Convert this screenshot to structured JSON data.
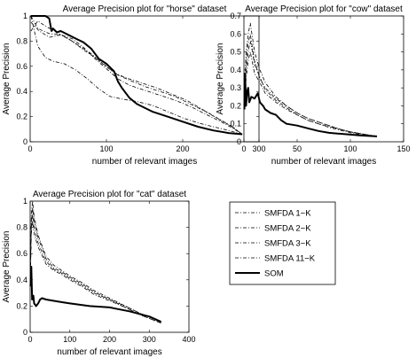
{
  "chart_data": [
    {
      "type": "line",
      "title": "Average Precision plot for \"horse\" dataset",
      "xlabel": "number of relevant images",
      "ylabel": "Average Precision",
      "xlim": [
        0,
        300
      ],
      "ylim": [
        0,
        1
      ],
      "xticks": [
        0,
        100,
        200,
        300
      ],
      "yticks": [
        0,
        0.2,
        0.4,
        0.6,
        0.8,
        1
      ],
      "xtick_labels": [
        "0",
        "100",
        "200",
        "300"
      ],
      "ytick_labels": [
        "0",
        "0.2",
        "0.4",
        "0.6",
        "0.8",
        "1"
      ],
      "grid": false,
      "series": [
        {
          "name": "SMFDA 1−K",
          "style": "dashdot",
          "width": 0.8,
          "x": [
            1,
            10,
            20,
            30,
            45,
            60,
            75,
            90,
            105,
            120,
            140,
            160,
            180,
            200,
            220,
            240,
            260,
            278
          ],
          "y": [
            1.0,
            0.76,
            0.67,
            0.64,
            0.62,
            0.57,
            0.5,
            0.42,
            0.36,
            0.34,
            0.32,
            0.29,
            0.24,
            0.19,
            0.15,
            0.12,
            0.09,
            0.06
          ]
        },
        {
          "name": "SMFDA 2−K",
          "style": "dashdot",
          "width": 0.8,
          "x": [
            1,
            10,
            25,
            40,
            55,
            70,
            85,
            100,
            115,
            130,
            150,
            170,
            190,
            210,
            230,
            250,
            265,
            278
          ],
          "y": [
            1.0,
            0.9,
            0.86,
            0.85,
            0.82,
            0.75,
            0.66,
            0.58,
            0.5,
            0.45,
            0.41,
            0.37,
            0.33,
            0.28,
            0.22,
            0.16,
            0.11,
            0.06
          ]
        },
        {
          "name": "SMFDA 3−K",
          "style": "dashdot",
          "width": 0.8,
          "x": [
            1,
            12,
            25,
            40,
            55,
            70,
            85,
            100,
            115,
            130,
            150,
            170,
            190,
            210,
            230,
            250,
            265,
            278
          ],
          "y": [
            0.95,
            0.88,
            0.83,
            0.85,
            0.8,
            0.73,
            0.67,
            0.6,
            0.53,
            0.49,
            0.44,
            0.4,
            0.36,
            0.3,
            0.24,
            0.17,
            0.12,
            0.06
          ]
        },
        {
          "name": "SMFDA 11−K",
          "style": "dashdot",
          "width": 0.8,
          "x": [
            1,
            10,
            20,
            35,
            50,
            65,
            80,
            95,
            110,
            125,
            145,
            165,
            185,
            205,
            225,
            245,
            262,
            278
          ],
          "y": [
            0.88,
            0.96,
            0.92,
            0.87,
            0.82,
            0.76,
            0.7,
            0.62,
            0.55,
            0.51,
            0.47,
            0.43,
            0.38,
            0.33,
            0.26,
            0.19,
            0.13,
            0.06
          ]
        },
        {
          "name": "SOM",
          "style": "solid",
          "width": 2,
          "x": [
            1,
            3,
            5,
            10,
            15,
            20,
            25,
            28,
            30,
            35,
            40,
            50,
            60,
            70,
            80,
            90,
            100,
            110,
            115,
            120,
            130,
            140,
            160,
            180,
            200,
            220,
            240,
            260,
            278
          ],
          "y": [
            1.0,
            1.0,
            1.0,
            1.0,
            1.0,
            1.0,
            0.98,
            0.88,
            0.9,
            0.87,
            0.88,
            0.85,
            0.82,
            0.79,
            0.74,
            0.66,
            0.62,
            0.56,
            0.48,
            0.43,
            0.35,
            0.3,
            0.24,
            0.2,
            0.16,
            0.12,
            0.09,
            0.07,
            0.06
          ]
        }
      ]
    },
    {
      "type": "line",
      "title": "Average Precision plot for \"cow\" dataset",
      "xlabel": "number of relevant images",
      "ylabel": "Average Precision",
      "xlim": [
        0,
        150
      ],
      "ylim": [
        0,
        0.7
      ],
      "xticks": [
        0,
        50,
        100,
        150
      ],
      "yticks": [
        0,
        0.1,
        0.2,
        0.3,
        0.4,
        0.5,
        0.6,
        0.7
      ],
      "xtick_labels": [
        "0",
        "50",
        "100",
        "150"
      ],
      "ytick_labels": [
        "0",
        "0.1",
        "0.2",
        "0.3",
        "0.4",
        "0.5",
        "0.6",
        "0.7"
      ],
      "grid": false,
      "series": [
        {
          "name": "SMFDA 1−K",
          "style": "dashdot",
          "width": 0.8,
          "x": [
            1,
            2,
            4,
            6,
            8,
            10,
            15,
            20,
            30,
            40,
            50,
            60,
            70,
            80,
            90,
            100,
            110,
            125
          ],
          "y": [
            0.2,
            0.35,
            0.45,
            0.5,
            0.44,
            0.38,
            0.33,
            0.27,
            0.22,
            0.18,
            0.15,
            0.12,
            0.1,
            0.08,
            0.065,
            0.05,
            0.04,
            0.03
          ]
        },
        {
          "name": "SMFDA 2−K",
          "style": "dashdot",
          "width": 0.8,
          "x": [
            1,
            2,
            4,
            6,
            8,
            10,
            15,
            20,
            30,
            40,
            50,
            60,
            70,
            80,
            90,
            100,
            110,
            125
          ],
          "y": [
            0.3,
            0.45,
            0.55,
            0.6,
            0.52,
            0.45,
            0.35,
            0.3,
            0.24,
            0.2,
            0.16,
            0.13,
            0.11,
            0.09,
            0.07,
            0.055,
            0.045,
            0.03
          ]
        },
        {
          "name": "SMFDA 3−K",
          "style": "dashdot",
          "width": 0.8,
          "x": [
            1,
            2,
            4,
            6,
            8,
            10,
            15,
            20,
            30,
            40,
            50,
            60,
            70,
            80,
            90,
            100,
            110,
            125
          ],
          "y": [
            0.35,
            0.5,
            0.6,
            0.66,
            0.58,
            0.5,
            0.4,
            0.33,
            0.25,
            0.2,
            0.16,
            0.13,
            0.11,
            0.09,
            0.07,
            0.055,
            0.045,
            0.03
          ]
        },
        {
          "name": "SMFDA 11−K",
          "style": "dashdot",
          "width": 0.8,
          "x": [
            1,
            2,
            4,
            6,
            8,
            10,
            15,
            20,
            30,
            40,
            50,
            60,
            70,
            80,
            90,
            100,
            110,
            125
          ],
          "y": [
            0.25,
            0.4,
            0.5,
            0.56,
            0.5,
            0.43,
            0.36,
            0.29,
            0.23,
            0.19,
            0.15,
            0.12,
            0.1,
            0.085,
            0.07,
            0.055,
            0.045,
            0.03
          ]
        },
        {
          "name": "SOM",
          "style": "solid",
          "width": 2,
          "x": [
            0.5,
            1,
            1.5,
            2,
            3,
            4,
            5,
            7,
            10,
            13,
            15,
            18,
            20,
            25,
            30,
            35,
            40,
            50,
            60,
            70,
            80,
            90,
            100,
            110,
            125
          ],
          "y": [
            0.18,
            0.38,
            0.3,
            0.2,
            0.28,
            0.3,
            0.22,
            0.25,
            0.24,
            0.27,
            0.22,
            0.2,
            0.18,
            0.16,
            0.15,
            0.12,
            0.1,
            0.09,
            0.075,
            0.06,
            0.05,
            0.045,
            0.04,
            0.035,
            0.03
          ]
        }
      ]
    },
    {
      "type": "line",
      "title": "Average Precision plot for \"cat\" dataset",
      "xlabel": "number of relevant images",
      "ylabel": "Average Precision",
      "xlim": [
        0,
        400
      ],
      "ylim": [
        0,
        1
      ],
      "xticks": [
        0,
        100,
        200,
        300,
        400
      ],
      "yticks": [
        0,
        0.2,
        0.4,
        0.6,
        0.8,
        1
      ],
      "xtick_labels": [
        "0",
        "100",
        "200",
        "300",
        "400"
      ],
      "ytick_labels": [
        "0",
        "0.2",
        "0.4",
        "0.6",
        "0.8",
        "1"
      ],
      "grid": false,
      "series": [
        {
          "name": "SMFDA 1−K",
          "style": "dashdot",
          "width": 0.8,
          "x": [
            1,
            3,
            6,
            10,
            20,
            40,
            60,
            80,
            100,
            130,
            160,
            200,
            240,
            280,
            330
          ],
          "y": [
            0.45,
            0.75,
            0.85,
            0.75,
            0.65,
            0.52,
            0.47,
            0.44,
            0.4,
            0.35,
            0.29,
            0.24,
            0.19,
            0.13,
            0.07
          ]
        },
        {
          "name": "SMFDA 2−K",
          "style": "dashdot",
          "width": 0.8,
          "x": [
            1,
            3,
            6,
            10,
            20,
            40,
            60,
            80,
            100,
            130,
            160,
            200,
            240,
            280,
            330
          ],
          "y": [
            0.55,
            0.85,
            0.95,
            0.85,
            0.72,
            0.56,
            0.49,
            0.46,
            0.42,
            0.37,
            0.31,
            0.25,
            0.2,
            0.14,
            0.08
          ]
        },
        {
          "name": "SMFDA 3−K",
          "style": "dashdot",
          "width": 0.8,
          "x": [
            1,
            3,
            6,
            10,
            20,
            40,
            60,
            80,
            100,
            130,
            160,
            200,
            240,
            280,
            330
          ],
          "y": [
            0.6,
            0.9,
            1.0,
            0.88,
            0.74,
            0.58,
            0.51,
            0.47,
            0.43,
            0.38,
            0.32,
            0.26,
            0.2,
            0.14,
            0.08
          ]
        },
        {
          "name": "SMFDA 11−K",
          "style": "dashdot",
          "width": 0.8,
          "x": [
            1,
            3,
            6,
            10,
            20,
            40,
            60,
            80,
            100,
            130,
            160,
            200,
            240,
            280,
            330
          ],
          "y": [
            0.5,
            0.8,
            0.9,
            0.8,
            0.68,
            0.54,
            0.48,
            0.45,
            0.41,
            0.36,
            0.3,
            0.25,
            0.19,
            0.13,
            0.07
          ]
        },
        {
          "name": "SOM",
          "style": "solid",
          "width": 2,
          "x": [
            1,
            3,
            5,
            8,
            10,
            15,
            20,
            25,
            30,
            40,
            60,
            80,
            100,
            150,
            200,
            250,
            300,
            330
          ],
          "y": [
            0.35,
            0.5,
            0.25,
            0.28,
            0.22,
            0.2,
            0.22,
            0.25,
            0.26,
            0.25,
            0.24,
            0.23,
            0.22,
            0.2,
            0.19,
            0.16,
            0.12,
            0.08
          ]
        }
      ]
    }
  ],
  "legend": {
    "position": "lower-right",
    "entries": [
      "SMFDA 1−K",
      "SMFDA 2−K",
      "SMFDA 3−K",
      "SMFDA 11−K",
      "SOM"
    ]
  }
}
